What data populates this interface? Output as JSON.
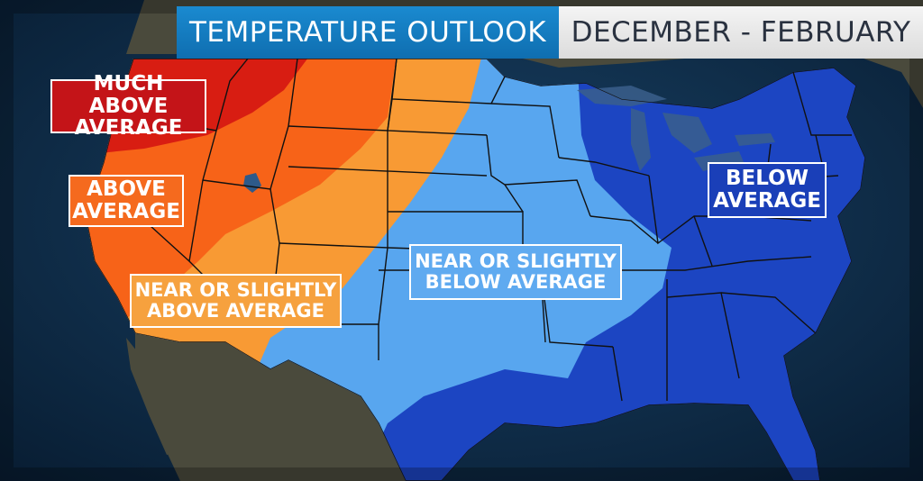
{
  "header": {
    "title": "TEMPERATURE OUTLOOK",
    "period": "DECEMBER - FEBRUARY"
  },
  "legend_labels": {
    "much_above": [
      "MUCH ABOVE",
      "AVERAGE"
    ],
    "above": [
      "ABOVE",
      "AVERAGE"
    ],
    "near_above": [
      "NEAR OR SLIGHTLY",
      "ABOVE AVERAGE"
    ],
    "near_below": [
      "NEAR OR SLIGHTLY",
      "BELOW AVERAGE"
    ],
    "below": [
      "BELOW",
      "AVERAGE"
    ]
  },
  "colors": {
    "much_above": "#d81d12",
    "above": "#f76318",
    "near_above": "#f89a34",
    "near_below": "#58a6ef",
    "below": "#1c45c2",
    "ocean": "#0f3050",
    "land": "#4a4a3c",
    "title_bar": "#1580c6",
    "period_bar": "#e6e6e6"
  }
}
